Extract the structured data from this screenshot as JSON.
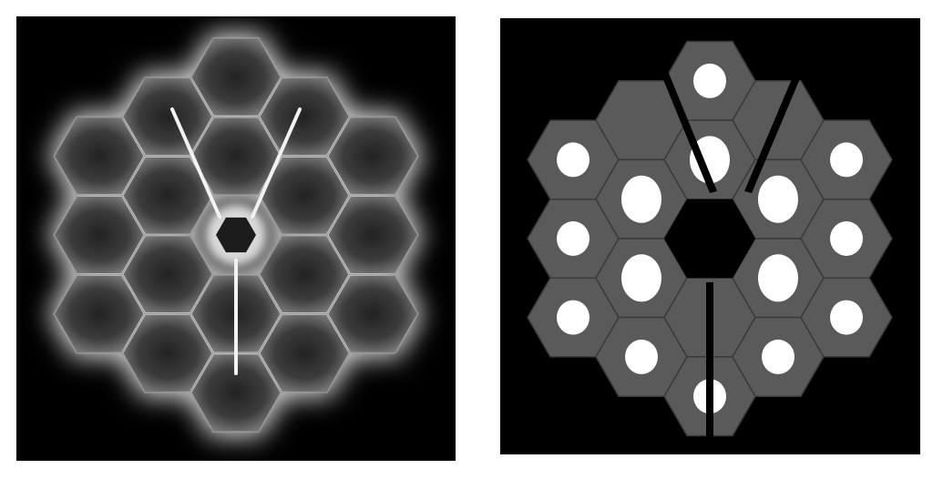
{
  "figure": {
    "panels": [
      {
        "id": "left",
        "depicts": "blurred-hexagonal-segmented-mirror",
        "background_color": "#000000",
        "segment_fill": "#2e2e2e",
        "segment_edge_color": "#9a9a9a",
        "glow_color": "#d8d8d8",
        "strut_color": "#f2f2f2"
      },
      {
        "id": "right",
        "depicts": "hexagonal-segmented-mirror-with-apertures",
        "background_color": "#000000",
        "segment_fill": "#5a5a5a",
        "segment_edge_color": "#3a3a3a",
        "aperture_color": "#ffffff"
      }
    ]
  }
}
